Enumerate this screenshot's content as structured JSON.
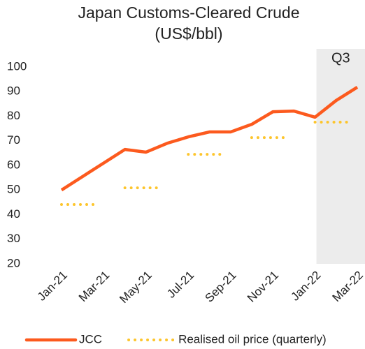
{
  "chart_data": {
    "type": "line",
    "title": "Japan Customs-Cleared Crude",
    "subtitle": "(US$/bbl)",
    "categories": [
      "Jan-21",
      null,
      "Mar-21",
      null,
      "May-21",
      null,
      "Jul-21",
      null,
      "Sep-21",
      null,
      "Nov-21",
      null,
      "Jan-22",
      null,
      "Mar-22"
    ],
    "series": [
      {
        "name": "JCC",
        "color": "#fc5a1e",
        "style": "solid",
        "values": [
          50,
          55.5,
          61,
          66.5,
          65.4,
          69,
          71.6,
          73.6,
          73.6,
          76.7,
          81.8,
          82.1,
          79.6,
          86.4,
          91.8
        ]
      },
      {
        "name": "Realised oil price (quarterly)",
        "color": "#fdc52c",
        "style": "dotted",
        "values": [
          44.1,
          null,
          null,
          50.9,
          null,
          null,
          64.5,
          null,
          null,
          71.3,
          null,
          null,
          77.6,
          null,
          null
        ]
      }
    ],
    "highlight": {
      "label": "Q3",
      "start": "Jan-22",
      "color": "#ececec"
    },
    "ylim": [
      20,
      100
    ],
    "yticks": [
      20,
      30,
      40,
      50,
      60,
      70,
      80,
      90,
      100
    ],
    "grid": false,
    "legend": "bottom"
  }
}
